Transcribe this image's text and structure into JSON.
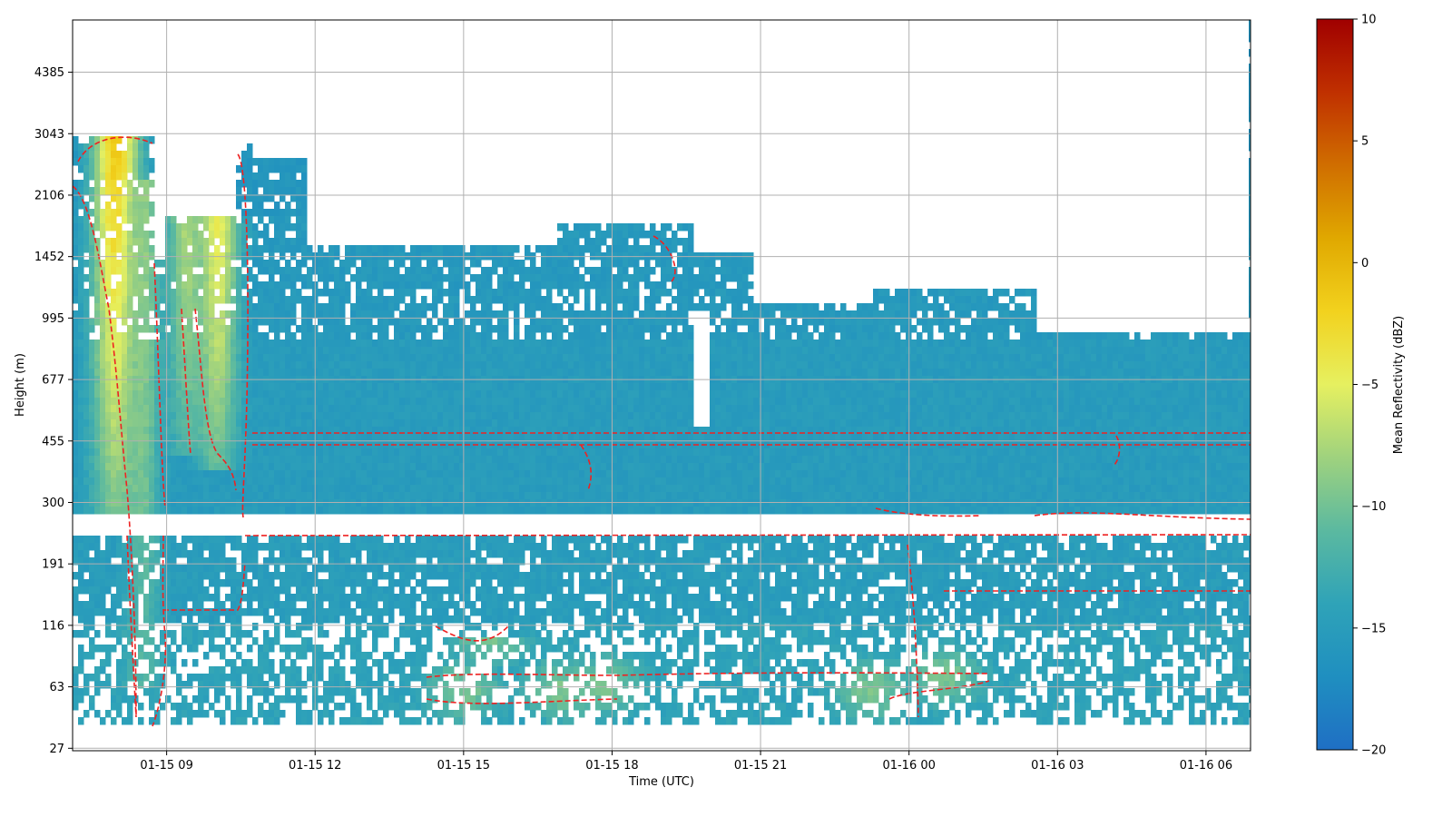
{
  "chart_data": {
    "type": "heatmap",
    "title": "",
    "xlabel": "Time (UTC)",
    "ylabel": "Height (m)",
    "grid": true,
    "x_ticks": [
      "01-15 09",
      "01-15 12",
      "01-15 15",
      "01-15 18",
      "01-15 21",
      "01-16 00",
      "01-16 03",
      "01-16 06"
    ],
    "x_range_hours": [
      7.1,
      30.9
    ],
    "x_tick_hours": [
      9,
      12,
      15,
      18,
      21,
      24,
      27,
      30
    ],
    "y_ticks": [
      27,
      63,
      116,
      191,
      300,
      455,
      677,
      995,
      1452,
      2106,
      3043,
      4385
    ],
    "y_tick_index": [
      0,
      1,
      2,
      3,
      4,
      5,
      6,
      7,
      8,
      9,
      10,
      11
    ],
    "y_range_index": [
      -0.04,
      11.85
    ],
    "colorbar": {
      "label": "Mean Reflectivity (dBZ)",
      "min": -20,
      "max": 10,
      "ticks": [
        10,
        5,
        0,
        -5,
        -10,
        -15,
        -20
      ],
      "colormap": [
        "#1f6fc4",
        "#1f8fc0",
        "#2fa3b8",
        "#5bb9a0",
        "#9fd27e",
        "#e6f060",
        "#f2d21e",
        "#e0a800",
        "#d06e00",
        "#c03000",
        "#a00000"
      ]
    },
    "contour": {
      "style": "dashed",
      "color": "#ee2222"
    }
  }
}
